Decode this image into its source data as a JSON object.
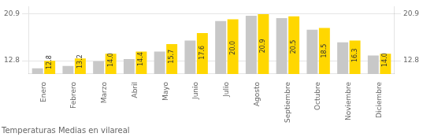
{
  "chart_data": {
    "type": "bar",
    "title": "Temperaturas Medias en vilareal",
    "categories": [
      "Enero",
      "Febrero",
      "Marzo",
      "Abril",
      "Mayo",
      "Junio",
      "Julio",
      "Agosto",
      "Septiembre",
      "Octubre",
      "Noviembre",
      "Diciembre"
    ],
    "series": [
      {
        "color": "#C8C8C8",
        "values": [
          11.5,
          11.9,
          12.7,
          13.1,
          14.4,
          16.3,
          19.7,
          20.6,
          20.2,
          18.2,
          16.0,
          13.7
        ]
      },
      {
        "color": "#FFD700",
        "values": [
          12.8,
          13.2,
          14.0,
          14.4,
          15.7,
          17.6,
          20.0,
          20.9,
          20.5,
          18.5,
          16.3,
          14.0
        ],
        "value_labels": [
          "12.8",
          "13.2",
          "14.0",
          "14.4",
          "15.7",
          "17.6",
          "20.0",
          "20.9",
          "20.5",
          "18.5",
          "16.3",
          "14.0"
        ],
        "data_labels": true
      }
    ],
    "ylim": [
      10.5,
      22.2
    ],
    "yticks": [
      12.8,
      20.9
    ],
    "y2lim": [
      10.5,
      22.2
    ],
    "y2ticks": [
      12.8,
      20.9
    ],
    "grid": true
  }
}
